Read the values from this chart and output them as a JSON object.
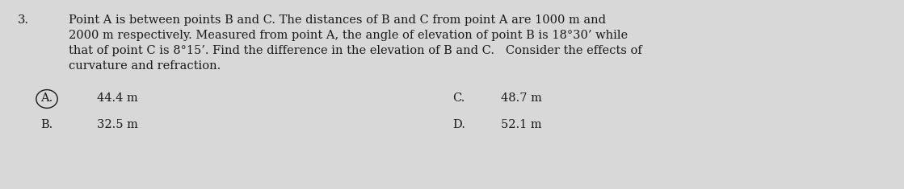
{
  "number": "3.",
  "line1": "Point A is between points B and C. The distances of B and C from point A are 1000 m and",
  "line2": "2000 m respectively. Measured from point A, the angle of elevation of point B is 18°30’ while",
  "line3": "that of point C is 8°15’. Find the difference in the elevation of B and C.   Consider the effects of",
  "line4": "curvature and refraction.",
  "choice_A_label": "A.",
  "choice_A_text": "44.4 m",
  "choice_B_label": "B.",
  "choice_B_text": "32.5 m",
  "choice_C_label": "C.",
  "choice_C_text": "48.7 m",
  "choice_D_label": "D.",
  "choice_D_text": "52.1 m",
  "bg_color": "#d8d8d8",
  "text_color": "#1a1a1a",
  "font_size": 10.5,
  "fig_width": 11.19,
  "fig_height": 2.35,
  "dpi": 100
}
